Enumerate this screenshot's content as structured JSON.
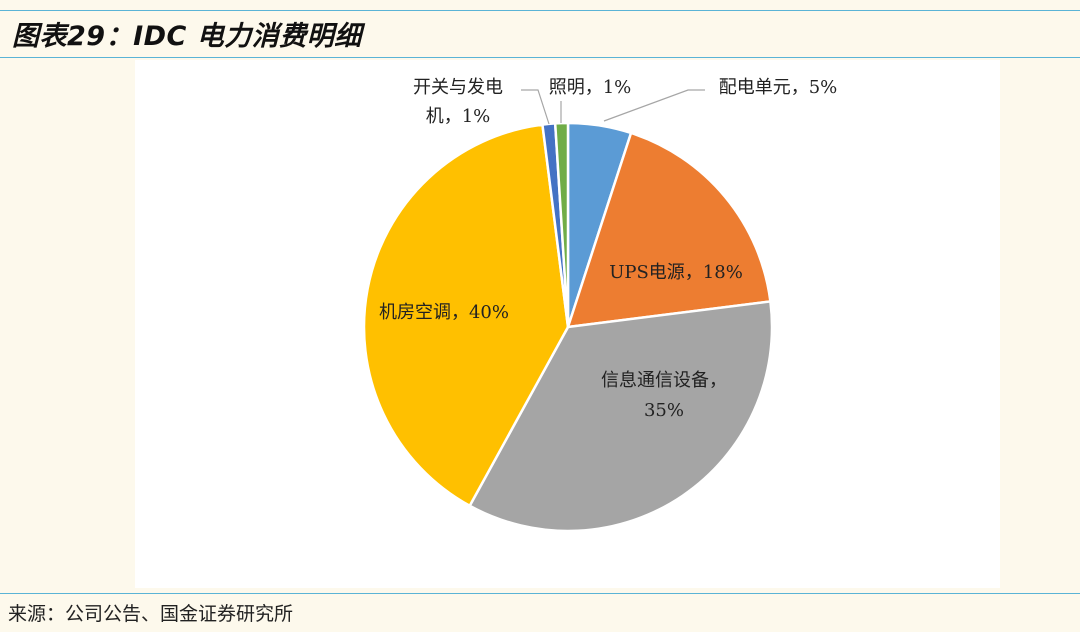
{
  "figure": {
    "title": "图表29：IDC 电力消费明细",
    "source": "来源：公司公告、国金证券研究所"
  },
  "chart_data": {
    "type": "pie",
    "title": "",
    "slices": [
      {
        "name": "配电单元",
        "value": 5,
        "label": "配电单元，5%",
        "color": "#5b9bd5"
      },
      {
        "name": "UPS电源",
        "value": 18,
        "label": "UPS电源，18%",
        "color": "#ed7d31"
      },
      {
        "name": "信息通信设备",
        "value": 35,
        "label": "信息通信设备，|35%",
        "color": "#a5a5a5"
      },
      {
        "name": "机房空调",
        "value": 40,
        "label": "机房空调，40%",
        "color": "#ffc000"
      },
      {
        "name": "开关与发电机",
        "value": 1,
        "label": "开关与发电|机，1%",
        "color": "#4472c4"
      },
      {
        "name": "照明",
        "value": 1,
        "label": "照明，1%",
        "color": "#70ad47"
      }
    ],
    "start_angle_deg": 0,
    "direction": "clockwise",
    "legend": "none"
  }
}
